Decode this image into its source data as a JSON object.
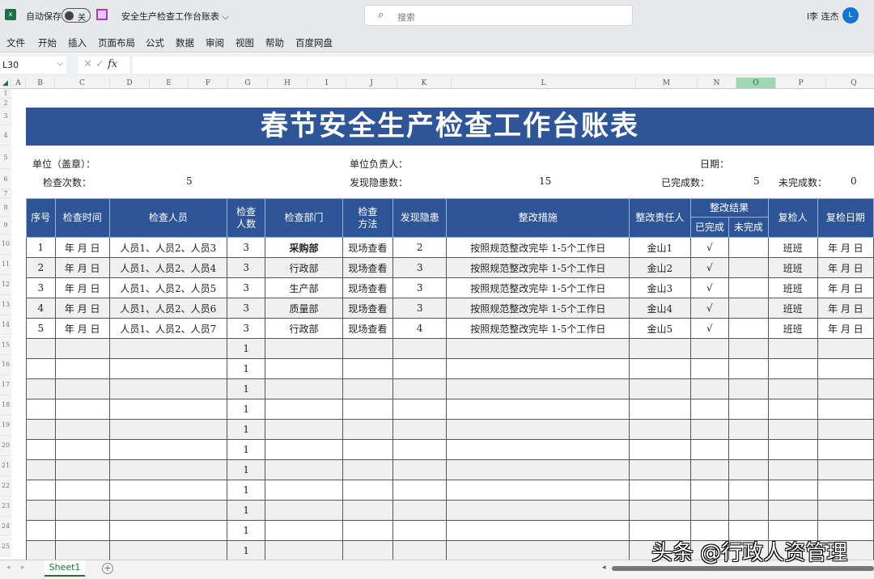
{
  "titlebar": {
    "autosave_label": "自动保存",
    "autosave_state": "关",
    "doc_title": "安全生产检查工作台账表 ⌵",
    "search_placeholder": "搜索",
    "user_name": "l李 连杰",
    "avatar_initial": "L"
  },
  "menu": [
    "文件",
    "开始",
    "插入",
    "页面布局",
    "公式",
    "数据",
    "审阅",
    "视图",
    "帮助",
    "百度网盘"
  ],
  "formula_bar": {
    "name_box": "L30",
    "formula": ""
  },
  "columns": [
    "A",
    "B",
    "C",
    "D",
    "E",
    "F",
    "G",
    "H",
    "I",
    "J",
    "K",
    "L",
    "M",
    "N",
    "O",
    "P",
    "Q"
  ],
  "selected_column": "O",
  "sheet": {
    "title": "春节安全生产检查工作台账表",
    "unit_label": "单位（盖章）：",
    "head_label": "单位负责人：",
    "date_label": "日期：",
    "check_count_label": "检查次数：",
    "check_count": "5",
    "hazard_count_label": "发现隐患数：",
    "hazard_count": "15",
    "done_count_label": "已完成数：",
    "done_count": "5",
    "undone_count_label": "未完成数：",
    "undone_count": "0",
    "headers": {
      "no": "序号",
      "time": "检查时间",
      "people": "检查人员",
      "people_count": "检查\n人数",
      "dept": "检查部门",
      "method": "检查\n方法",
      "hazards": "发现隐患",
      "measures": "整改措施",
      "owner": "整改责任人",
      "result": "整改结果",
      "done": "已完成",
      "undone": "未完成",
      "rechecker": "复检人",
      "recheck_date": "复检日期"
    },
    "rows": [
      [
        "1",
        "年 月 日",
        "人员1、人员2、人员3",
        "3",
        "采购部",
        "现场查看",
        "2",
        "按照规范整改完毕 1-5个工作日",
        "金山1",
        "√",
        "",
        "班班",
        "年 月 日"
      ],
      [
        "2",
        "年 月 日",
        "人员1、人员2、人员4",
        "3",
        "行政部",
        "现场查看",
        "3",
        "按照规范整改完毕 1-5个工作日",
        "金山2",
        "√",
        "",
        "班班",
        "年 月 日"
      ],
      [
        "3",
        "年 月 日",
        "人员1、人员2、人员5",
        "3",
        "生产部",
        "现场查看",
        "3",
        "按照规范整改完毕 1-5个工作日",
        "金山3",
        "√",
        "",
        "班班",
        "年 月 日"
      ],
      [
        "4",
        "年 月 日",
        "人员1、人员2、人员6",
        "3",
        "质量部",
        "现场查看",
        "3",
        "按照规范整改完毕 1-5个工作日",
        "金山4",
        "√",
        "",
        "班班",
        "年 月 日"
      ],
      [
        "5",
        "年 月 日",
        "人员1、人员2、人员7",
        "3",
        "行政部",
        "现场查看",
        "4",
        "按照规范整改完毕 1-5个工作日",
        "金山5",
        "√",
        "",
        "班班",
        "年 月 日"
      ],
      [
        "",
        "",
        "",
        "1",
        "",
        "",
        "",
        "",
        "",
        "",
        "",
        "",
        ""
      ],
      [
        "",
        "",
        "",
        "1",
        "",
        "",
        "",
        "",
        "",
        "",
        "",
        "",
        ""
      ],
      [
        "",
        "",
        "",
        "1",
        "",
        "",
        "",
        "",
        "",
        "",
        "",
        "",
        ""
      ],
      [
        "",
        "",
        "",
        "1",
        "",
        "",
        "",
        "",
        "",
        "",
        "",
        "",
        ""
      ],
      [
        "",
        "",
        "",
        "1",
        "",
        "",
        "",
        "",
        "",
        "",
        "",
        "",
        ""
      ],
      [
        "",
        "",
        "",
        "1",
        "",
        "",
        "",
        "",
        "",
        "",
        "",
        "",
        ""
      ],
      [
        "",
        "",
        "",
        "1",
        "",
        "",
        "",
        "",
        "",
        "",
        "",
        "",
        ""
      ],
      [
        "",
        "",
        "",
        "1",
        "",
        "",
        "",
        "",
        "",
        "",
        "",
        "",
        ""
      ],
      [
        "",
        "",
        "",
        "1",
        "",
        "",
        "",
        "",
        "",
        "",
        "",
        "",
        ""
      ],
      [
        "",
        "",
        "",
        "1",
        "",
        "",
        "",
        "",
        "",
        "",
        "",
        "",
        ""
      ],
      [
        "",
        "",
        "",
        "1",
        "",
        "",
        "",
        "",
        "",
        "",
        "",
        "",
        ""
      ]
    ]
  },
  "tabs": {
    "sheet1": "Sheet1",
    "add": "+"
  },
  "watermark": "头条 @行政人资管理",
  "colors": {
    "header_blue": "#2e5597",
    "excel_green": "#1d7044"
  }
}
